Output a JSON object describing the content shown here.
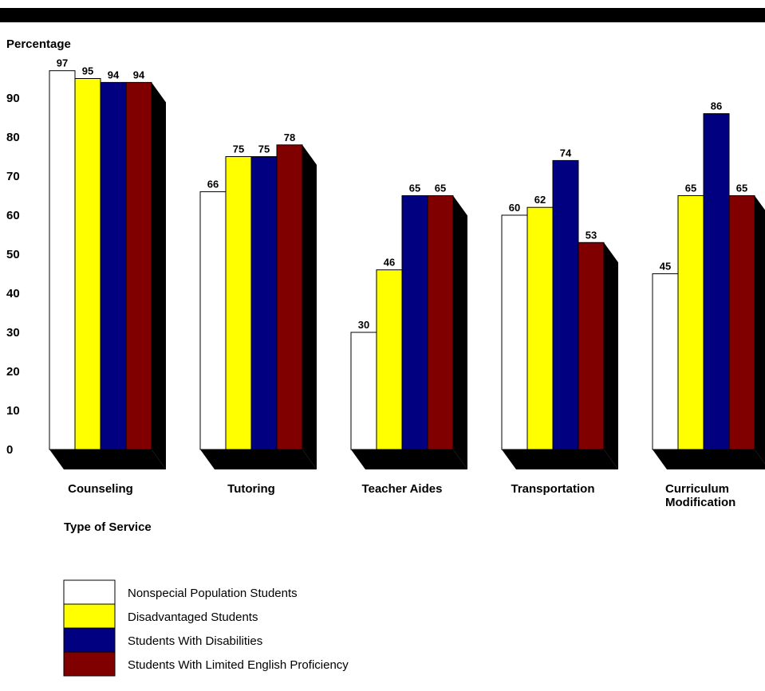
{
  "chart_data": {
    "type": "bar",
    "title": "",
    "ylabel": "Percentage",
    "xlabel": "Type of Service",
    "ylim": [
      0,
      100
    ],
    "yticks": [
      0,
      10,
      20,
      30,
      40,
      50,
      60,
      70,
      80,
      90
    ],
    "grid": false,
    "legend_placement": "bottom-left",
    "categories": [
      [
        "Counseling"
      ],
      [
        "Tutoring"
      ],
      [
        "Teacher Aides"
      ],
      [
        "Transportation"
      ],
      [
        "Curriculum",
        "Modification"
      ]
    ],
    "series": [
      {
        "name": "Nonspecial Population Students",
        "color": "#ffffff",
        "values": [
          97,
          66,
          30,
          60,
          45
        ]
      },
      {
        "name": "Disadvantaged Students",
        "color": "#ffff00",
        "values": [
          95,
          75,
          46,
          62,
          65
        ]
      },
      {
        "name": "Students With Disabilities",
        "color": "#000080",
        "values": [
          94,
          75,
          65,
          74,
          86
        ]
      },
      {
        "name": "Students With Limited English Proficiency",
        "color": "#800000",
        "values": [
          94,
          78,
          65,
          53,
          65
        ]
      }
    ]
  }
}
